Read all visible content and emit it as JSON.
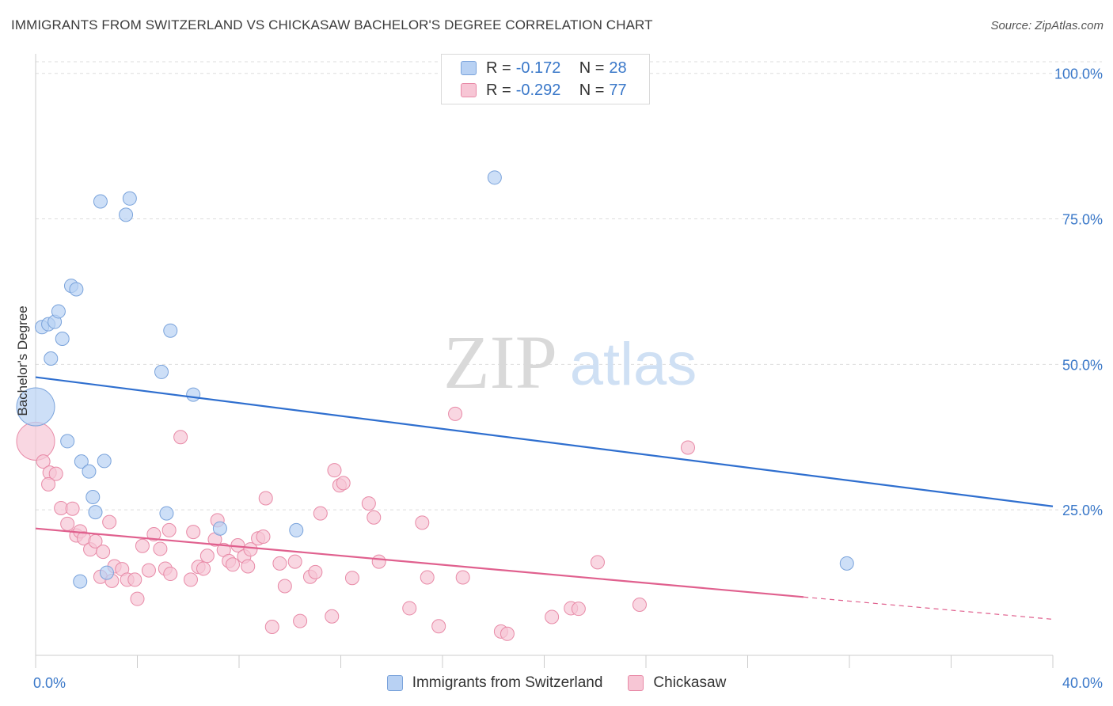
{
  "title": "IMMIGRANTS FROM SWITZERLAND VS CHICKASAW BACHELOR'S DEGREE CORRELATION CHART",
  "source": "Source: ZipAtlas.com",
  "watermark": {
    "zip": "ZIP",
    "atlas": "atlas"
  },
  "legend": {
    "series1": {
      "r_label": "R =",
      "r_value": "-0.172",
      "n_label": "N =",
      "n_value": "28"
    },
    "series2": {
      "r_label": "R =",
      "r_value": "-0.292",
      "n_label": "N =",
      "n_value": "77"
    }
  },
  "colors": {
    "blue_fill": "#b8d1f3",
    "blue_stroke": "#7aa3db",
    "blue_line": "#2f6fcf",
    "pink_fill": "#f7c6d5",
    "pink_stroke": "#e88aa7",
    "pink_line": "#e0608e",
    "axis_text": "#3a78c9",
    "grid": "#dddddd"
  },
  "chart_data": {
    "type": "scatter",
    "title": "IMMIGRANTS FROM SWITZERLAND VS CHICKASAW BACHELOR'S DEGREE CORRELATION CHART",
    "xlabel": "",
    "ylabel": "Bachelor's Degree",
    "xlim": [
      0,
      40
    ],
    "ylim": [
      0,
      102
    ],
    "x_tick_labels": [
      "0.0%",
      "40.0%"
    ],
    "y_ticks": [
      25,
      50,
      75,
      100
    ],
    "y_tick_labels": [
      "25.0%",
      "50.0%",
      "75.0%",
      "100.0%"
    ],
    "series": [
      {
        "name": "Immigrants from Switzerland",
        "color": "#b8d1f3",
        "r": -0.172,
        "n": 28,
        "trend": {
          "x0": 0,
          "y0": 47.8,
          "x1": 40,
          "y1": 25.6,
          "solid_to": 40
        },
        "points": [
          {
            "x": 0.0,
            "y": 42.7,
            "big": 1
          },
          {
            "x": 0.25,
            "y": 56.4
          },
          {
            "x": 0.5,
            "y": 56.9
          },
          {
            "x": 0.75,
            "y": 57.3
          },
          {
            "x": 0.9,
            "y": 59.1
          },
          {
            "x": 1.05,
            "y": 54.4
          },
          {
            "x": 0.6,
            "y": 51.0
          },
          {
            "x": 1.4,
            "y": 63.5
          },
          {
            "x": 1.6,
            "y": 62.9
          },
          {
            "x": 2.55,
            "y": 78.0
          },
          {
            "x": 3.55,
            "y": 75.7
          },
          {
            "x": 3.7,
            "y": 78.5
          },
          {
            "x": 5.3,
            "y": 55.8
          },
          {
            "x": 4.95,
            "y": 48.7
          },
          {
            "x": 6.2,
            "y": 44.8
          },
          {
            "x": 1.25,
            "y": 36.8
          },
          {
            "x": 1.8,
            "y": 33.3
          },
          {
            "x": 2.1,
            "y": 31.6
          },
          {
            "x": 2.7,
            "y": 33.4
          },
          {
            "x": 2.25,
            "y": 27.2
          },
          {
            "x": 2.35,
            "y": 24.6
          },
          {
            "x": 5.15,
            "y": 24.4
          },
          {
            "x": 7.25,
            "y": 21.8
          },
          {
            "x": 10.25,
            "y": 21.5
          },
          {
            "x": 1.75,
            "y": 12.7
          },
          {
            "x": 2.8,
            "y": 14.2
          },
          {
            "x": 18.05,
            "y": 82.1
          },
          {
            "x": 31.9,
            "y": 15.8
          }
        ]
      },
      {
        "name": "Chickasaw",
        "color": "#f7c6d5",
        "r": -0.292,
        "n": 77,
        "trend": {
          "x0": 0,
          "y0": 21.8,
          "x1": 40,
          "y1": 6.2,
          "solid_to": 30.2
        },
        "points": [
          {
            "x": 0.0,
            "y": 36.8,
            "big": 1
          },
          {
            "x": 0.3,
            "y": 33.3
          },
          {
            "x": 0.55,
            "y": 31.4
          },
          {
            "x": 0.8,
            "y": 31.2
          },
          {
            "x": 0.5,
            "y": 29.4
          },
          {
            "x": 1.0,
            "y": 25.3
          },
          {
            "x": 1.45,
            "y": 25.2
          },
          {
            "x": 1.25,
            "y": 22.6
          },
          {
            "x": 1.6,
            "y": 20.6
          },
          {
            "x": 1.75,
            "y": 21.3
          },
          {
            "x": 1.9,
            "y": 20.1
          },
          {
            "x": 2.15,
            "y": 18.2
          },
          {
            "x": 2.35,
            "y": 19.6
          },
          {
            "x": 2.65,
            "y": 17.8
          },
          {
            "x": 2.9,
            "y": 22.9
          },
          {
            "x": 2.55,
            "y": 13.5
          },
          {
            "x": 3.1,
            "y": 15.3
          },
          {
            "x": 3.4,
            "y": 14.8
          },
          {
            "x": 3.0,
            "y": 12.8
          },
          {
            "x": 3.6,
            "y": 13.0
          },
          {
            "x": 3.9,
            "y": 13.0
          },
          {
            "x": 4.2,
            "y": 18.8
          },
          {
            "x": 4.45,
            "y": 14.6
          },
          {
            "x": 4.65,
            "y": 20.8
          },
          {
            "x": 4.9,
            "y": 18.3
          },
          {
            "x": 5.1,
            "y": 14.9
          },
          {
            "x": 5.3,
            "y": 14.0
          },
          {
            "x": 5.25,
            "y": 21.5
          },
          {
            "x": 4.0,
            "y": 9.7
          },
          {
            "x": 5.7,
            "y": 37.5
          },
          {
            "x": 6.2,
            "y": 21.2
          },
          {
            "x": 6.1,
            "y": 13.0
          },
          {
            "x": 6.4,
            "y": 15.2
          },
          {
            "x": 6.6,
            "y": 14.9
          },
          {
            "x": 6.75,
            "y": 17.1
          },
          {
            "x": 7.05,
            "y": 19.9
          },
          {
            "x": 7.15,
            "y": 23.2
          },
          {
            "x": 7.4,
            "y": 18.1
          },
          {
            "x": 7.6,
            "y": 16.2
          },
          {
            "x": 7.75,
            "y": 15.6
          },
          {
            "x": 7.95,
            "y": 18.9
          },
          {
            "x": 8.2,
            "y": 17.0
          },
          {
            "x": 8.35,
            "y": 15.3
          },
          {
            "x": 8.45,
            "y": 18.2
          },
          {
            "x": 8.75,
            "y": 20.1
          },
          {
            "x": 8.95,
            "y": 20.4
          },
          {
            "x": 9.05,
            "y": 27.0
          },
          {
            "x": 9.3,
            "y": 4.9
          },
          {
            "x": 9.6,
            "y": 15.8
          },
          {
            "x": 9.8,
            "y": 11.9
          },
          {
            "x": 10.2,
            "y": 16.1
          },
          {
            "x": 10.4,
            "y": 5.9
          },
          {
            "x": 10.8,
            "y": 13.5
          },
          {
            "x": 11.0,
            "y": 14.3
          },
          {
            "x": 11.2,
            "y": 24.4
          },
          {
            "x": 11.65,
            "y": 6.7
          },
          {
            "x": 11.75,
            "y": 31.8
          },
          {
            "x": 11.95,
            "y": 29.2
          },
          {
            "x": 12.1,
            "y": 29.6
          },
          {
            "x": 12.45,
            "y": 13.3
          },
          {
            "x": 13.1,
            "y": 26.1
          },
          {
            "x": 13.3,
            "y": 23.7
          },
          {
            "x": 13.5,
            "y": 16.1
          },
          {
            "x": 14.7,
            "y": 8.1
          },
          {
            "x": 15.2,
            "y": 22.8
          },
          {
            "x": 15.4,
            "y": 13.4
          },
          {
            "x": 15.85,
            "y": 5.0
          },
          {
            "x": 16.5,
            "y": 41.5
          },
          {
            "x": 16.8,
            "y": 13.4
          },
          {
            "x": 18.3,
            "y": 4.1
          },
          {
            "x": 18.55,
            "y": 3.7
          },
          {
            "x": 20.3,
            "y": 6.6
          },
          {
            "x": 21.05,
            "y": 8.1
          },
          {
            "x": 21.35,
            "y": 8.0
          },
          {
            "x": 22.1,
            "y": 16.0
          },
          {
            "x": 23.75,
            "y": 8.7
          },
          {
            "x": 25.65,
            "y": 35.7
          }
        ]
      }
    ]
  }
}
